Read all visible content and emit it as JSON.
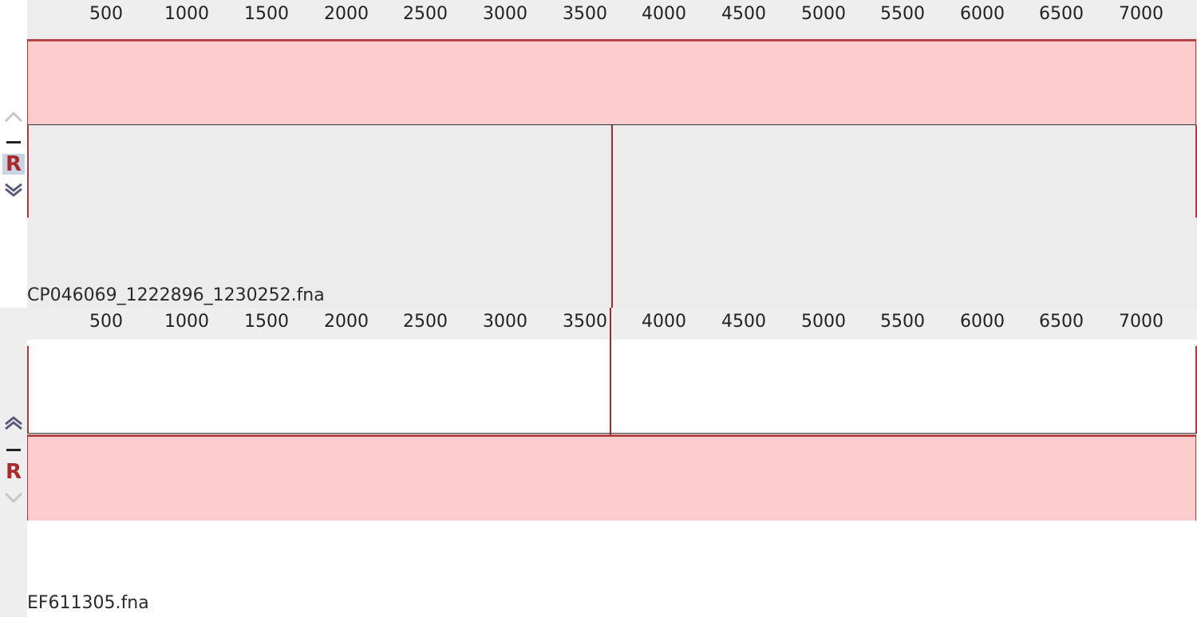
{
  "ruler": {
    "ticks": [
      "500",
      "1000",
      "1500",
      "2000",
      "2500",
      "3000",
      "3500",
      "4000",
      "4500",
      "5000",
      "5500",
      "6000",
      "6500",
      "7000"
    ]
  },
  "panels": [
    {
      "sequence_name": "CP046069_1222896_1230252.fna",
      "controls": {
        "move_up": "up-chevron-icon",
        "collapse": "minus-icon",
        "reverse_label": "R",
        "move_down": "down-chevron-icon"
      }
    },
    {
      "sequence_name": "EF611305.fna",
      "controls": {
        "move_up": "up-chevron-icon",
        "collapse": "minus-icon",
        "reverse_label": "R",
        "move_down": "down-chevron-icon"
      }
    }
  ],
  "colors": {
    "block_fill": "#fdcccc",
    "block_edge": "#b24646",
    "track_bg_top": "#ececec",
    "track_bg_bottom": "#ffffff",
    "reverse_button": "#a82b2b",
    "selected_button_bg": "#c9d3e6"
  }
}
